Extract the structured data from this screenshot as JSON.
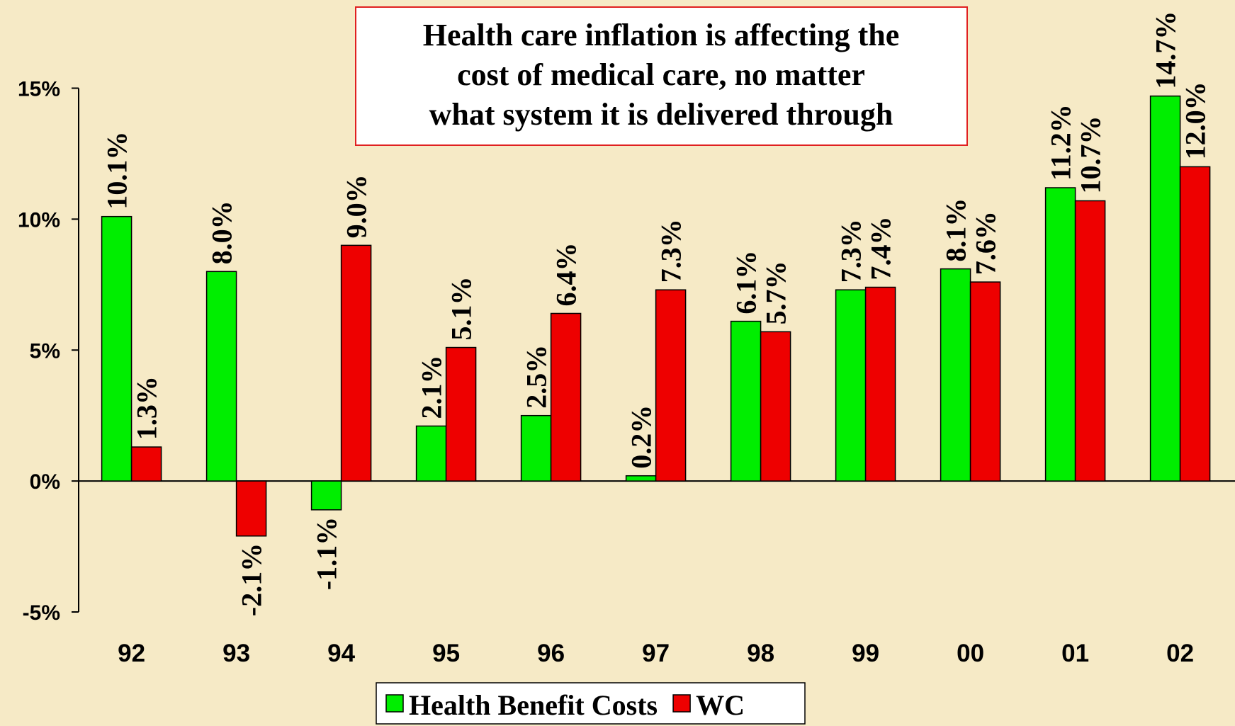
{
  "chart_data": {
    "type": "bar",
    "title": [
      "Health care inflation is affecting the",
      "cost of medical care, no matter",
      "what system it is delivered through"
    ],
    "categories": [
      "92",
      "93",
      "94",
      "95",
      "96",
      "97",
      "98",
      "99",
      "00",
      "01",
      "02"
    ],
    "series": [
      {
        "name": "Health Benefit Costs",
        "color": "#00ee00",
        "values": [
          10.1,
          8.0,
          -1.1,
          2.1,
          2.5,
          0.2,
          6.1,
          7.3,
          8.1,
          11.2,
          14.7
        ],
        "value_labels": [
          "10.1%",
          "8.0%",
          "-1.1%",
          "2.1%",
          "2.5%",
          "0.2%",
          "6.1%",
          "7.3%",
          "8.1%",
          "11.2%",
          "14.7%"
        ]
      },
      {
        "name": "WC",
        "color": "#ee0000",
        "values": [
          1.3,
          -2.1,
          9.0,
          5.1,
          6.4,
          7.3,
          5.7,
          7.4,
          7.6,
          10.7,
          12.0
        ],
        "value_labels": [
          "1.3%",
          "-2.1%",
          "9.0%",
          "5.1%",
          "6.4%",
          "7.3%",
          "5.7%",
          "7.4%",
          "7.6%",
          "10.7%",
          "12.0%"
        ]
      }
    ],
    "ylim": [
      -5,
      15
    ],
    "yticks": [
      {
        "value": -5,
        "label": "-5%"
      },
      {
        "value": 0,
        "label": "0%"
      },
      {
        "value": 5,
        "label": "5%"
      },
      {
        "value": 10,
        "label": "10%"
      },
      {
        "value": 15,
        "label": "15%"
      }
    ],
    "legend": "bottom"
  }
}
